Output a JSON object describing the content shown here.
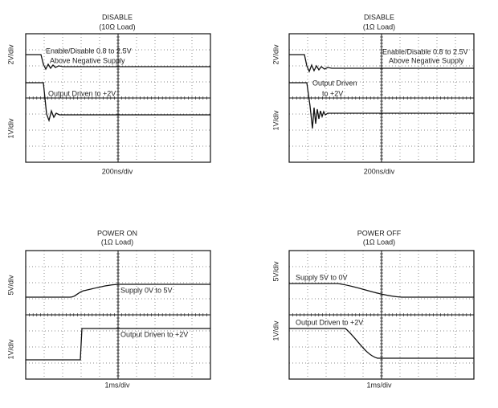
{
  "panels": [
    {
      "title": "DISABLE",
      "subtitle": "(10Ω Load)",
      "y_labels": [
        "2V/div",
        "1V/div"
      ],
      "x_label": "200ns/div",
      "annotations": [
        "Enable/Disable 0.8 to 2.5V",
        "Above Negative Supply",
        "Output Driven to +2V"
      ]
    },
    {
      "title": "DISABLE",
      "subtitle": "(1Ω Load)",
      "y_labels": [
        "2V/div",
        "1V/div"
      ],
      "x_label": "200ns/div",
      "annotations": [
        "Enable/Disable 0.8 to 2.5V",
        "Above Negative Supply",
        "Output Driven",
        "to +2V"
      ]
    },
    {
      "title": "POWER ON",
      "subtitle": "(1Ω Load)",
      "y_labels": [
        "5V/div",
        "1V/div"
      ],
      "x_label": "1ms/div",
      "annotations": [
        "Supply 0V to 5V",
        "Output Driven to +2V"
      ]
    },
    {
      "title": "POWER OFF",
      "subtitle": "(1Ω Load)",
      "y_labels": [
        "5V/div",
        "1V/div"
      ],
      "x_label": "1ms/div",
      "annotations": [
        "Supply 5V to 0V",
        "Output Driven to +2V"
      ]
    }
  ]
}
